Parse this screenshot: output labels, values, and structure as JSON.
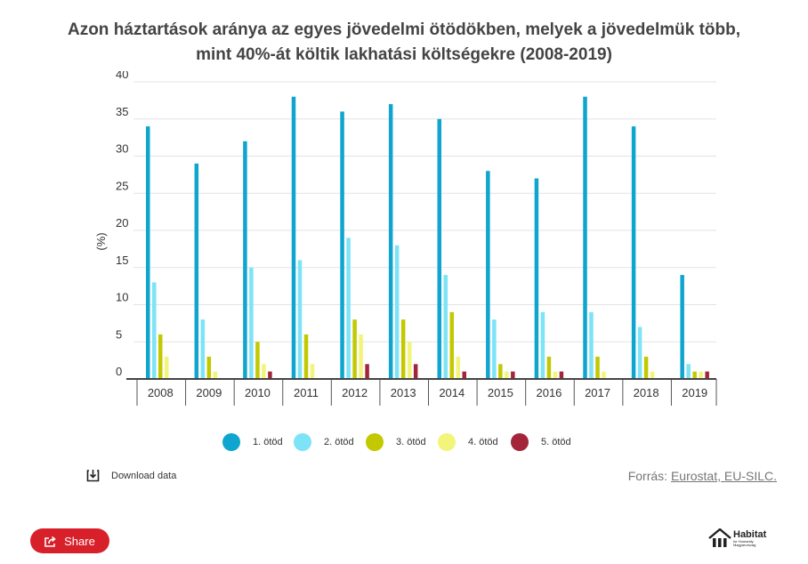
{
  "chart_data": {
    "type": "bar",
    "title_line1": "Azon háztartások aránya az egyes jövedelmi ötödökben, melyek a jövedelmük több,",
    "title_line2": "mint 40%-át költik lakhatási költségekre (2008-2019)",
    "ylabel": "(%)",
    "ylim": [
      0,
      40
    ],
    "yticks": [
      0,
      5,
      10,
      15,
      20,
      25,
      30,
      35,
      40
    ],
    "grid": true,
    "legend_position": "bottom",
    "categories": [
      "2008",
      "2009",
      "2010",
      "2011",
      "2012",
      "2013",
      "2014",
      "2015",
      "2016",
      "2017",
      "2018",
      "2019"
    ],
    "series": [
      {
        "name": "1. ötöd",
        "color": "#0fa5ce",
        "values": [
          34,
          29,
          32,
          38,
          36,
          37,
          35,
          28,
          27,
          38,
          34,
          14
        ]
      },
      {
        "name": "2. ötöd",
        "color": "#7de3f7",
        "values": [
          13,
          8,
          15,
          16,
          19,
          18,
          14,
          8,
          9,
          9,
          7,
          2
        ]
      },
      {
        "name": "3. ötöd",
        "color": "#c2c900",
        "values": [
          6,
          3,
          5,
          6,
          8,
          8,
          9,
          2,
          3,
          3,
          3,
          1
        ]
      },
      {
        "name": "4. ötöd",
        "color": "#f2f57a",
        "values": [
          3,
          1,
          2,
          2,
          6,
          5,
          3,
          1,
          1,
          1,
          1,
          1
        ]
      },
      {
        "name": "5. ötöd",
        "color": "#a3253a",
        "values": [
          0,
          0,
          1,
          0,
          2,
          2,
          1,
          1,
          1,
          0,
          0,
          1
        ]
      }
    ]
  },
  "footer": {
    "download_label": "Download data",
    "download_icon": "download-icon",
    "source_prefix": "Forrás:",
    "source_link": "Eurostat, EU-SILC.",
    "share_label": "Share",
    "share_icon": "share-icon",
    "logo_main": "Habitat",
    "logo_sub": "for Humanity",
    "logo_sub2": "Magyarország"
  }
}
